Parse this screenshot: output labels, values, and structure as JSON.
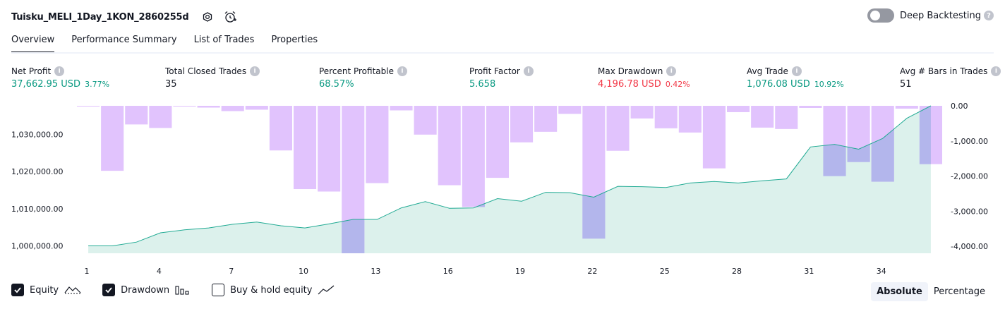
{
  "header": {
    "title": "Tuisku_MELI_1Day_1KON_2860255d",
    "deep_backtesting_label": "Deep Backtesting",
    "deep_backtesting_enabled": false,
    "help_glyph": "?"
  },
  "tabs": [
    {
      "label": "Overview",
      "active": true
    },
    {
      "label": "Performance Summary",
      "active": false
    },
    {
      "label": "List of Trades",
      "active": false
    },
    {
      "label": "Properties",
      "active": false
    }
  ],
  "metrics": [
    {
      "label": "Net Profit",
      "value": "37,662.95 USD",
      "pct": "3.77%",
      "color": "#089981"
    },
    {
      "label": "Total Closed Trades",
      "value": "35",
      "pct": "",
      "color": "#131722"
    },
    {
      "label": "Percent Profitable",
      "value": "68.57%",
      "pct": "",
      "color": "#089981"
    },
    {
      "label": "Profit Factor",
      "value": "5.658",
      "pct": "",
      "color": "#089981"
    },
    {
      "label": "Max Drawdown",
      "value": "4,196.78 USD",
      "pct": "0.42%",
      "color": "#f23645"
    },
    {
      "label": "Avg Trade",
      "value": "1,076.08 USD",
      "pct": "10.92%",
      "color": "#089981"
    },
    {
      "label": "Avg # Bars in Trades",
      "value": "51",
      "pct": "",
      "color": "#131722"
    }
  ],
  "chart_data": {
    "type": "bar+area",
    "x": [
      1,
      2,
      3,
      4,
      5,
      6,
      7,
      8,
      9,
      10,
      11,
      12,
      13,
      14,
      15,
      16,
      17,
      18,
      19,
      20,
      21,
      22,
      23,
      24,
      25,
      26,
      27,
      28,
      29,
      30,
      31,
      32,
      33,
      34,
      35,
      36
    ],
    "x_ticks": [
      1,
      4,
      7,
      10,
      13,
      16,
      19,
      22,
      25,
      28,
      31,
      34
    ],
    "series": [
      {
        "name": "Equity",
        "axis": "left",
        "color": "#22ab94",
        "fill": "#dcf1ec",
        "values": [
          1000000,
          1000000,
          1001000,
          1003500,
          1004300,
          1004800,
          1005800,
          1006400,
          1005400,
          1004800,
          1005900,
          1007100,
          1007100,
          1010200,
          1011900,
          1010100,
          1010200,
          1012700,
          1012000,
          1014400,
          1014300,
          1013100,
          1016000,
          1015900,
          1015700,
          1016900,
          1017300,
          1016900,
          1017500,
          1018000,
          1026600,
          1027300,
          1026000,
          1028900,
          1034300,
          1037663
        ]
      },
      {
        "name": "Drawdown",
        "axis": "right",
        "color": "#e1c3fd",
        "overlap_color": "#b3b6ec",
        "values": [
          -20,
          -1850,
          -530,
          -630,
          -20,
          -50,
          -150,
          -110,
          -1270,
          -2370,
          -2440,
          -4197,
          -2200,
          -130,
          -820,
          -2260,
          -2880,
          -2050,
          -1040,
          -740,
          -230,
          -3780,
          -1280,
          -360,
          -640,
          -760,
          -1780,
          -180,
          -620,
          -660,
          -60,
          -2000,
          -1600,
          -2160,
          -80,
          -1660
        ]
      }
    ],
    "left_axis": {
      "ticks": [
        "1,000,000.00",
        "1,010,000.00",
        "1,020,000.00",
        "1,030,000.00"
      ],
      "tick_values": [
        1000000,
        1010000,
        1020000,
        1030000
      ]
    },
    "right_axis": {
      "ticks": [
        "0.00",
        "-1,000.00",
        "-2,000.00",
        "-3,000.00",
        "-4,000.00"
      ],
      "tick_values": [
        0,
        -1000,
        -2000,
        -3000,
        -4000
      ]
    },
    "ylim_left": [
      998000,
      1037663
    ],
    "ylim_right": [
      -4197,
      0
    ]
  },
  "legend": [
    {
      "label": "Equity",
      "checked": true,
      "icon": "equity-line-icon"
    },
    {
      "label": "Drawdown",
      "checked": true,
      "icon": "drawdown-bars-icon"
    },
    {
      "label": "Buy & hold equity",
      "checked": false,
      "icon": "buy-hold-line-icon"
    }
  ],
  "view_toggle": [
    {
      "label": "Absolute",
      "active": true
    },
    {
      "label": "Percentage",
      "active": false
    }
  ]
}
